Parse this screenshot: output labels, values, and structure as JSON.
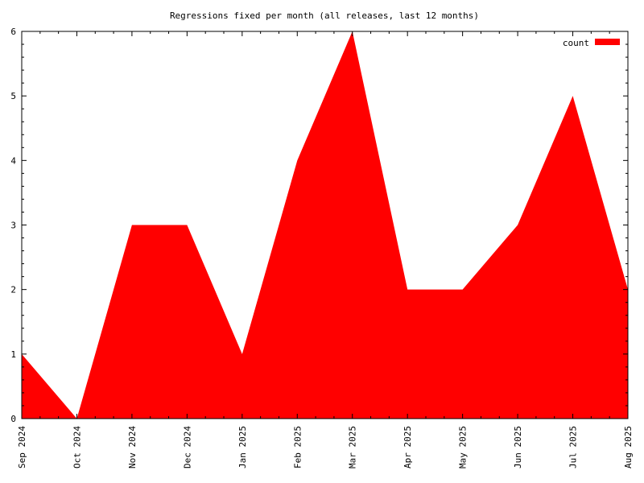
{
  "chart_data": {
    "type": "area",
    "title": "Regressions fixed per month (all releases, last 12 months)",
    "xlabel": "",
    "ylabel": "",
    "x": [
      "Sep 2024",
      "Oct 2024",
      "Nov 2024",
      "Dec 2024",
      "Jan 2025",
      "Feb 2025",
      "Mar 2025",
      "Apr 2025",
      "May 2025",
      "Jun 2025",
      "Jul 2025",
      "Aug 2025"
    ],
    "series": [
      {
        "name": "count",
        "values": [
          1,
          0,
          3,
          3,
          1,
          4,
          6,
          2,
          2,
          3,
          5,
          2
        ],
        "color": "#ff0000"
      }
    ],
    "ylim": [
      0,
      6
    ],
    "yticks": [
      0,
      1,
      2,
      3,
      4,
      5,
      6
    ],
    "grid": false,
    "legend_position": "top-right"
  }
}
